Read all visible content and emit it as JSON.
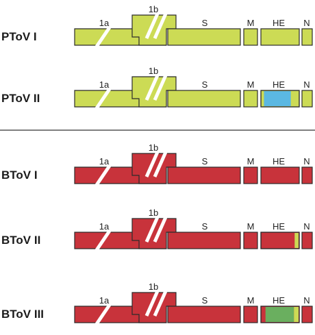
{
  "genes": {
    "g1a": "1a",
    "g1b": "1b",
    "S": "S",
    "M": "M",
    "HE": "HE",
    "N": "N"
  },
  "groups": [
    {
      "name": "PToV",
      "color": "#ccdb55",
      "rows": [
        {
          "label": "PToV I",
          "he_insert": null
        },
        {
          "label": "PToV II",
          "he_insert": {
            "color": "#5bb8e2",
            "from": 0.08,
            "to": 0.78
          }
        }
      ]
    },
    {
      "name": "BToV",
      "color": "#c8333b",
      "rows": [
        {
          "label": "BToV I",
          "he_insert": null
        },
        {
          "label": "BToV II",
          "he_insert": {
            "color": "#ccdb55",
            "from": 0.88,
            "to": 0.98
          }
        },
        {
          "label": "BToV III",
          "he_insert": {
            "color": "#6aaf5f",
            "from": 0.12,
            "to": 0.86,
            "edge_color": "#ccdb55"
          }
        }
      ]
    }
  ]
}
